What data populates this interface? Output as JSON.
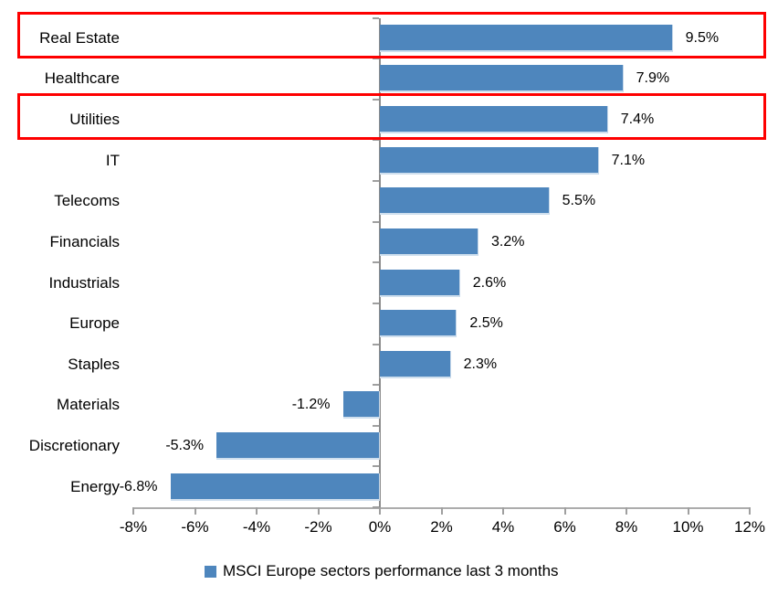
{
  "chart_data": {
    "type": "bar",
    "orientation": "horizontal",
    "title": "",
    "categories": [
      "Real Estate",
      "Healthcare",
      "Utilities",
      "IT",
      "Telecoms",
      "Financials",
      "Industrials",
      "Europe",
      "Staples",
      "Materials",
      "Discretionary",
      "Energy"
    ],
    "values": [
      9.5,
      7.9,
      7.4,
      7.1,
      5.5,
      3.2,
      2.6,
      2.5,
      2.3,
      -1.2,
      -5.3,
      -6.8
    ],
    "value_labels": [
      "9.5%",
      "7.9%",
      "7.4%",
      "7.1%",
      "5.5%",
      "3.2%",
      "2.6%",
      "2.5%",
      "2.3%",
      "-1.2%",
      "-5.3%",
      "-6.8%"
    ],
    "x_axis": {
      "min": -8,
      "max": 12,
      "step": 2,
      "tick_labels": [
        "-8%",
        "-6%",
        "-4%",
        "-2%",
        "0%",
        "2%",
        "4%",
        "6%",
        "8%",
        "10%",
        "12%"
      ]
    },
    "grid": false,
    "legend": {
      "position": "bottom",
      "label": "MSCI Europe sectors performance last 3 months"
    },
    "colors": {
      "bar": "#4e86bd",
      "axis_line": "#acacac",
      "category_axis_line": "#8c8c8c",
      "highlight_border": "#fe0000",
      "text": "#000000"
    },
    "annotations": {
      "highlighted_categories": [
        "Real Estate",
        "Utilities"
      ]
    }
  }
}
